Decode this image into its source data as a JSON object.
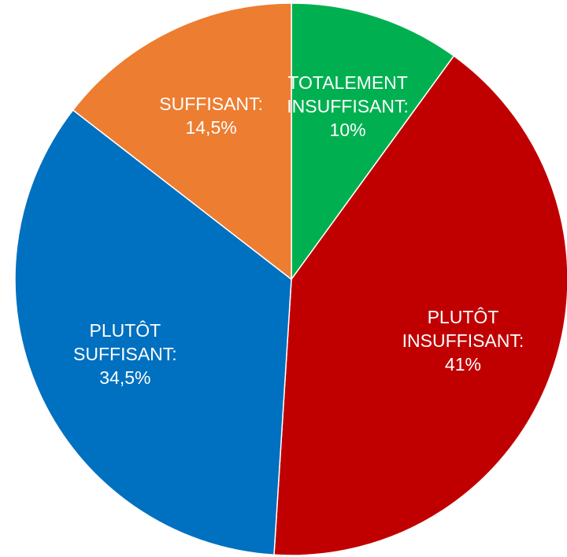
{
  "chart_data": {
    "type": "pie",
    "categories": [
      "TOTALEMENT INSUFFISANT:",
      "PLUTÔT INSUFFISANT:",
      "PLUTÔT SUFFISANT:",
      "SUFFISANT:"
    ],
    "values": [
      10,
      41,
      34.5,
      14.5
    ],
    "value_labels": [
      "10%",
      "41%",
      "34,5%",
      "14,5%"
    ],
    "colors": [
      "#00b050",
      "#c00000",
      "#0070c0",
      "#ed7d31"
    ]
  }
}
